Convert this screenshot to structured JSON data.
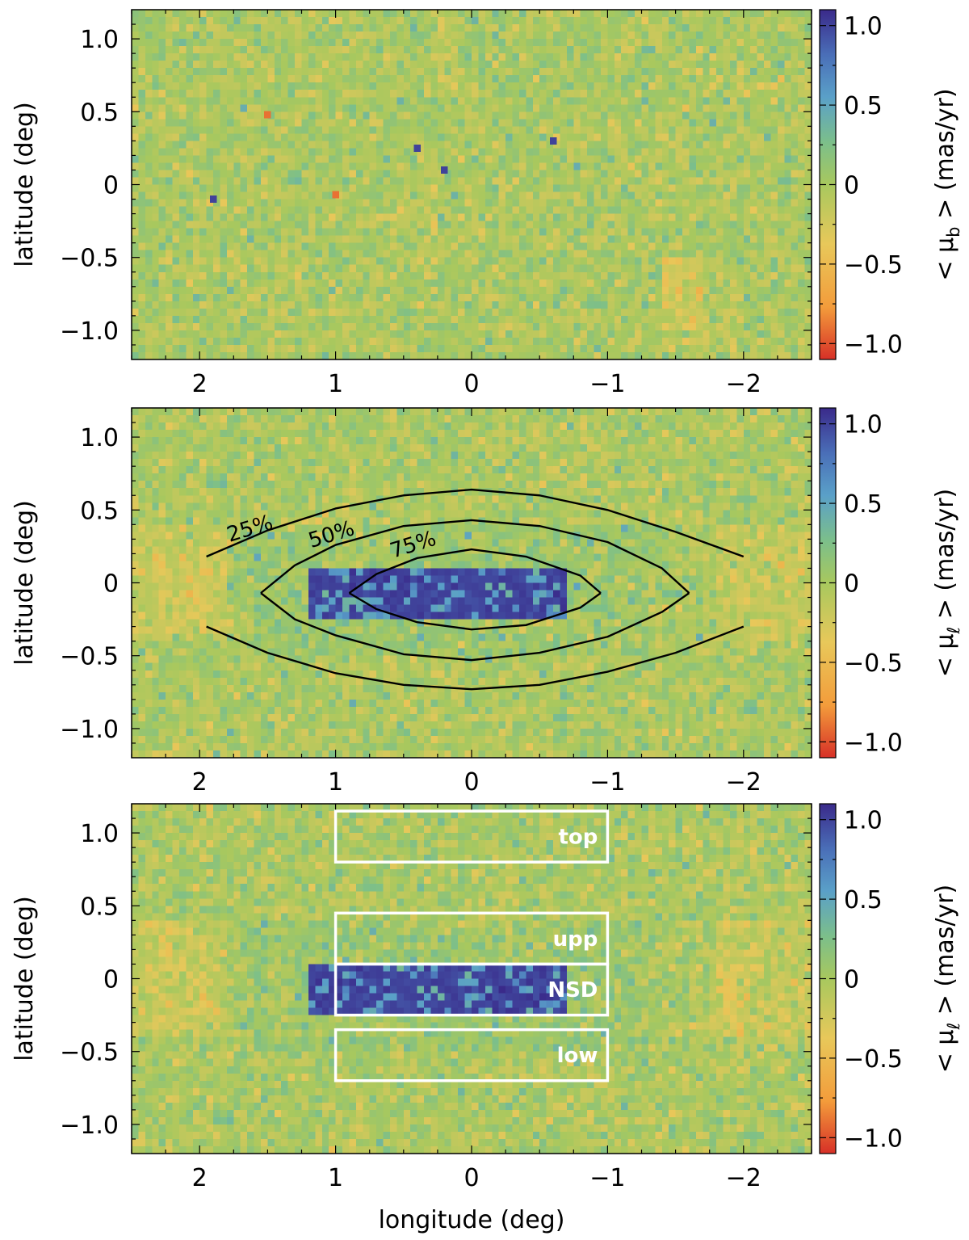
{
  "chart_data": [
    {
      "type": "heatmap",
      "panel": "top",
      "title": "",
      "xlabel": "",
      "ylabel": "latitude (deg)",
      "colorbar_label": "< μ_b > (mas/yr)",
      "colorbar_label_parts": {
        "prefix": "< μ",
        "sub": "b",
        "suffix": " >",
        "unit": "(mas/yr)"
      },
      "xlim": [
        2.5,
        -2.5
      ],
      "ylim": [
        -1.2,
        1.2
      ],
      "clim": [
        -1.1,
        1.1
      ],
      "x_ticks": [
        2,
        1,
        0,
        -1,
        -2
      ],
      "x_tick_labels": [
        "2",
        "1",
        "0",
        "−1",
        "−2"
      ],
      "y_ticks": [
        1.0,
        0.5,
        0,
        -0.5,
        -1.0
      ],
      "y_tick_labels": [
        "1.0",
        "0.5",
        "0",
        "−0.5",
        "−1.0"
      ],
      "cbar_ticks": [
        1.0,
        0.5,
        0,
        -0.5,
        -1.0
      ],
      "cbar_tick_labels": [
        "1.0",
        "0.5",
        "0",
        "−0.5",
        "−1.0"
      ],
      "grid": false,
      "features": [
        {
          "desc": "isolated blue pixels",
          "x": [
            0.2,
            0.4,
            -0.6,
            1.9
          ],
          "y": [
            0.1,
            0.25,
            0.3,
            -0.1
          ],
          "value": 1.0
        },
        {
          "desc": "red pixel",
          "x": [
            1.5,
            1.0
          ],
          "y": [
            0.48,
            -0.07
          ],
          "value": -0.9
        },
        {
          "desc": "orange patch",
          "x_range": [
            -1.4,
            -1.7
          ],
          "y_range": [
            -1.0,
            -0.5
          ],
          "value": -0.4
        }
      ]
    },
    {
      "type": "heatmap",
      "panel": "middle",
      "title": "",
      "xlabel": "",
      "ylabel": "latitude (deg)",
      "colorbar_label": "< μ_ℓ > (mas/yr)",
      "colorbar_label_parts": {
        "prefix": "< μ",
        "sub": "ℓ",
        "suffix": " >",
        "unit": "(mas/yr)"
      },
      "xlim": [
        2.5,
        -2.5
      ],
      "ylim": [
        -1.2,
        1.2
      ],
      "clim": [
        -1.1,
        1.1
      ],
      "x_ticks": [
        2,
        1,
        0,
        -1,
        -2
      ],
      "x_tick_labels": [
        "2",
        "1",
        "0",
        "−1",
        "−2"
      ],
      "y_ticks": [
        1.0,
        0.5,
        0,
        -0.5,
        -1.0
      ],
      "y_tick_labels": [
        "1.0",
        "0.5",
        "0",
        "−0.5",
        "−1.0"
      ],
      "cbar_ticks": [
        1.0,
        0.5,
        0,
        -0.5,
        -1.0
      ],
      "cbar_tick_labels": [
        "1.0",
        "0.5",
        "0",
        "−0.5",
        "−1.0"
      ],
      "grid": false,
      "nsd_band": {
        "x_range": [
          1.2,
          -0.7
        ],
        "y_range": [
          -0.25,
          0.1
        ],
        "value": 1.0
      },
      "contours": [
        {
          "label": "25%",
          "label_at": [
            1.78,
            0.28
          ],
          "upper": [
            [
              1.95,
              0.18
            ],
            [
              1.5,
              0.36
            ],
            [
              1.0,
              0.51
            ],
            [
              0.5,
              0.6
            ],
            [
              0.0,
              0.64
            ],
            [
              -0.5,
              0.6
            ],
            [
              -1.0,
              0.5
            ],
            [
              -1.5,
              0.35
            ],
            [
              -2.0,
              0.18
            ]
          ],
          "lower": [
            [
              1.95,
              -0.3
            ],
            [
              1.5,
              -0.48
            ],
            [
              1.0,
              -0.62
            ],
            [
              0.5,
              -0.7
            ],
            [
              0.0,
              -0.73
            ],
            [
              -0.5,
              -0.7
            ],
            [
              -1.0,
              -0.61
            ],
            [
              -1.5,
              -0.48
            ],
            [
              -2.0,
              -0.3
            ]
          ]
        },
        {
          "label": "50%",
          "label_at": [
            1.18,
            0.24
          ],
          "upper": [
            [
              1.55,
              -0.07
            ],
            [
              1.3,
              0.12
            ],
            [
              1.0,
              0.26
            ],
            [
              0.5,
              0.39
            ],
            [
              0.0,
              0.43
            ],
            [
              -0.5,
              0.39
            ],
            [
              -1.0,
              0.28
            ],
            [
              -1.4,
              0.1
            ],
            [
              -1.6,
              -0.07
            ]
          ],
          "lower": [
            [
              1.55,
              -0.07
            ],
            [
              1.3,
              -0.25
            ],
            [
              1.0,
              -0.36
            ],
            [
              0.5,
              -0.49
            ],
            [
              0.0,
              -0.53
            ],
            [
              -0.5,
              -0.48
            ],
            [
              -1.0,
              -0.37
            ],
            [
              -1.4,
              -0.2
            ],
            [
              -1.6,
              -0.07
            ]
          ]
        },
        {
          "label": "75%",
          "label_at": [
            0.58,
            0.17
          ],
          "upper": [
            [
              0.9,
              -0.07
            ],
            [
              0.7,
              0.06
            ],
            [
              0.4,
              0.17
            ],
            [
              0.0,
              0.23
            ],
            [
              -0.4,
              0.18
            ],
            [
              -0.8,
              0.05
            ],
            [
              -0.95,
              -0.07
            ]
          ],
          "lower": [
            [
              0.9,
              -0.07
            ],
            [
              0.7,
              -0.18
            ],
            [
              0.4,
              -0.27
            ],
            [
              0.0,
              -0.32
            ],
            [
              -0.4,
              -0.29
            ],
            [
              -0.8,
              -0.17
            ],
            [
              -0.95,
              -0.07
            ]
          ]
        }
      ]
    },
    {
      "type": "heatmap",
      "panel": "bottom",
      "title": "",
      "xlabel": "longitude (deg)",
      "ylabel": "latitude (deg)",
      "colorbar_label": "< μ_ℓ > (mas/yr)",
      "colorbar_label_parts": {
        "prefix": "< μ",
        "sub": "ℓ",
        "suffix": " >",
        "unit": "(mas/yr)"
      },
      "xlim": [
        2.5,
        -2.5
      ],
      "ylim": [
        -1.2,
        1.2
      ],
      "clim": [
        -1.1,
        1.1
      ],
      "x_ticks": [
        2,
        1,
        0,
        -1,
        -2
      ],
      "x_tick_labels": [
        "2",
        "1",
        "0",
        "−1",
        "−2"
      ],
      "y_ticks": [
        1.0,
        0.5,
        0,
        -0.5,
        -1.0
      ],
      "y_tick_labels": [
        "1.0",
        "0.5",
        "0",
        "−0.5",
        "−1.0"
      ],
      "cbar_ticks": [
        1.0,
        0.5,
        0,
        -0.5,
        -1.0
      ],
      "cbar_tick_labels": [
        "1.0",
        "0.5",
        "0",
        "−0.5",
        "−1.0"
      ],
      "grid": false,
      "nsd_band": {
        "x_range": [
          1.2,
          -0.7
        ],
        "y_range": [
          -0.25,
          0.1
        ],
        "value": 1.0
      },
      "regions": [
        {
          "label": "top",
          "x_range": [
            1.0,
            -1.0
          ],
          "y_range": [
            0.8,
            1.15
          ]
        },
        {
          "label": "upp",
          "x_range": [
            1.0,
            -1.0
          ],
          "y_range": [
            0.1,
            0.45
          ]
        },
        {
          "label": "NSD",
          "x_range": [
            1.0,
            -1.0
          ],
          "y_range": [
            -0.25,
            0.1
          ]
        },
        {
          "label": "low",
          "x_range": [
            1.0,
            -1.0
          ],
          "y_range": [
            -0.7,
            -0.35
          ]
        }
      ]
    }
  ],
  "colormap": [
    "#d73027",
    "#f39c3b",
    "#e8c85a",
    "#a8c85e",
    "#7cbf8a",
    "#5aa0c8",
    "#4a6fb8",
    "#3a2a8a"
  ]
}
